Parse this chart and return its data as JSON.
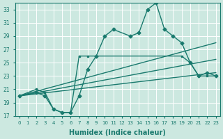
{
  "xlabel": "Humidex (Indice chaleur)",
  "bg_color": "#cce8e0",
  "grid_color": "#b0d8d0",
  "line_color": "#1a7a6e",
  "xlim": [
    -0.5,
    23.5
  ],
  "ylim": [
    17,
    34
  ],
  "yticks": [
    17,
    19,
    21,
    23,
    25,
    27,
    29,
    31,
    33
  ],
  "xticks": [
    0,
    1,
    2,
    3,
    4,
    5,
    6,
    7,
    8,
    9,
    10,
    11,
    12,
    13,
    14,
    15,
    16,
    17,
    18,
    19,
    20,
    21,
    22,
    23
  ],
  "series": [
    {
      "x": [
        0,
        2,
        3,
        4,
        5,
        6,
        7,
        8,
        9,
        10,
        11,
        13,
        14,
        15,
        16,
        17,
        18,
        19,
        20,
        21,
        22,
        23
      ],
      "y": [
        20,
        20.5,
        20,
        18,
        17.5,
        17.5,
        20,
        24,
        26,
        29,
        30,
        29,
        29.5,
        33,
        34,
        30,
        29,
        28,
        25,
        23,
        23.5,
        23
      ],
      "marker": "D",
      "markersize": 2.5,
      "linewidth": 1.0
    },
    {
      "x": [
        0,
        23
      ],
      "y": [
        20,
        28
      ],
      "marker": null,
      "markersize": 0,
      "linewidth": 1.0
    },
    {
      "x": [
        0,
        23
      ],
      "y": [
        20,
        25.5
      ],
      "marker": null,
      "markersize": 0,
      "linewidth": 1.0
    },
    {
      "x": [
        0,
        23
      ],
      "y": [
        20,
        23.5
      ],
      "marker": null,
      "markersize": 0,
      "linewidth": 1.0
    },
    {
      "x": [
        0,
        2,
        3,
        4,
        5,
        6,
        7,
        8,
        19,
        20,
        21,
        22,
        23
      ],
      "y": [
        20,
        21,
        20.5,
        18,
        17.5,
        17.5,
        26,
        26,
        26,
        25,
        23,
        23,
        23
      ],
      "marker": "s",
      "markersize": 2.0,
      "linewidth": 1.0
    }
  ]
}
